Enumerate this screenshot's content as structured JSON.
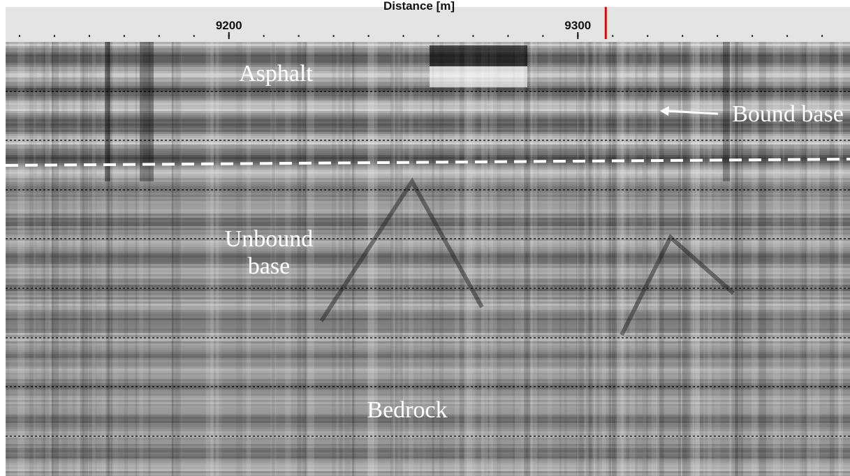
{
  "axis": {
    "title": "Distance [m]",
    "ticks": [
      9200,
      9300
    ],
    "xlim": [
      9136,
      9378
    ],
    "cursor": 9308
  },
  "annotations": {
    "asphalt": "Asphalt",
    "bound_base": "Bound base",
    "unbound_base": [
      "Unbound",
      "base"
    ],
    "bedrock": "Bedrock"
  }
}
